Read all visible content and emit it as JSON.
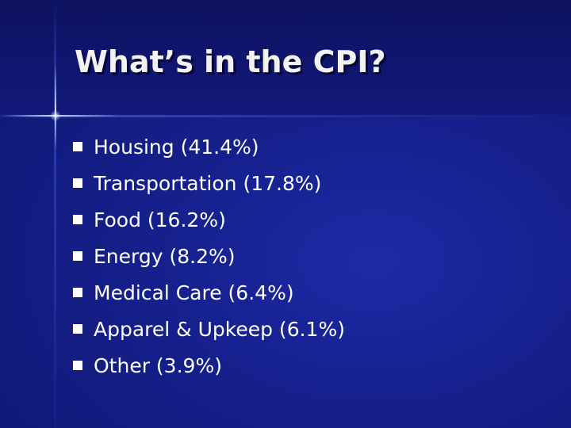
{
  "slide": {
    "title": "What’s in the CPI?",
    "items": [
      {
        "label": "Housing (41.4%)"
      },
      {
        "label": "Transportation (17.8%)"
      },
      {
        "label": "Food (16.2%)"
      },
      {
        "label": "Energy (8.2%)"
      },
      {
        "label": "Medical Care (6.4%)"
      },
      {
        "label": "Apparel & Upkeep (6.1%)"
      },
      {
        "label": "Other (3.9%)"
      }
    ]
  },
  "colors": {
    "background": "#121a78",
    "title_band": "#0d1260",
    "text": "#ffffff",
    "bullet": "#ffffff"
  },
  "icons": {
    "bullet": "square-bullet-icon"
  }
}
